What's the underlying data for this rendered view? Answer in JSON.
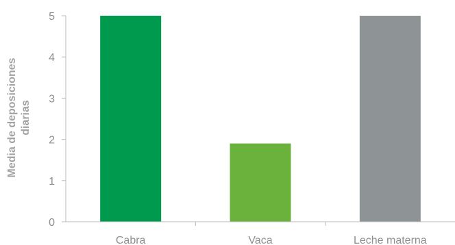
{
  "chart_data": {
    "type": "bar",
    "title": "",
    "xlabel": "",
    "ylabel_lines": [
      "Media de deposiciones",
      "diarias"
    ],
    "categories": [
      "Cabra",
      "Vaca",
      "Leche materna"
    ],
    "values": [
      5,
      1.9,
      5
    ],
    "colors": [
      "#009a4e",
      "#6bb23d",
      "#8e9396"
    ],
    "ylim": [
      0,
      5
    ],
    "yticks": [
      "0",
      "1",
      "2",
      "3",
      "4",
      "5"
    ],
    "grid": false,
    "legend": "none"
  }
}
